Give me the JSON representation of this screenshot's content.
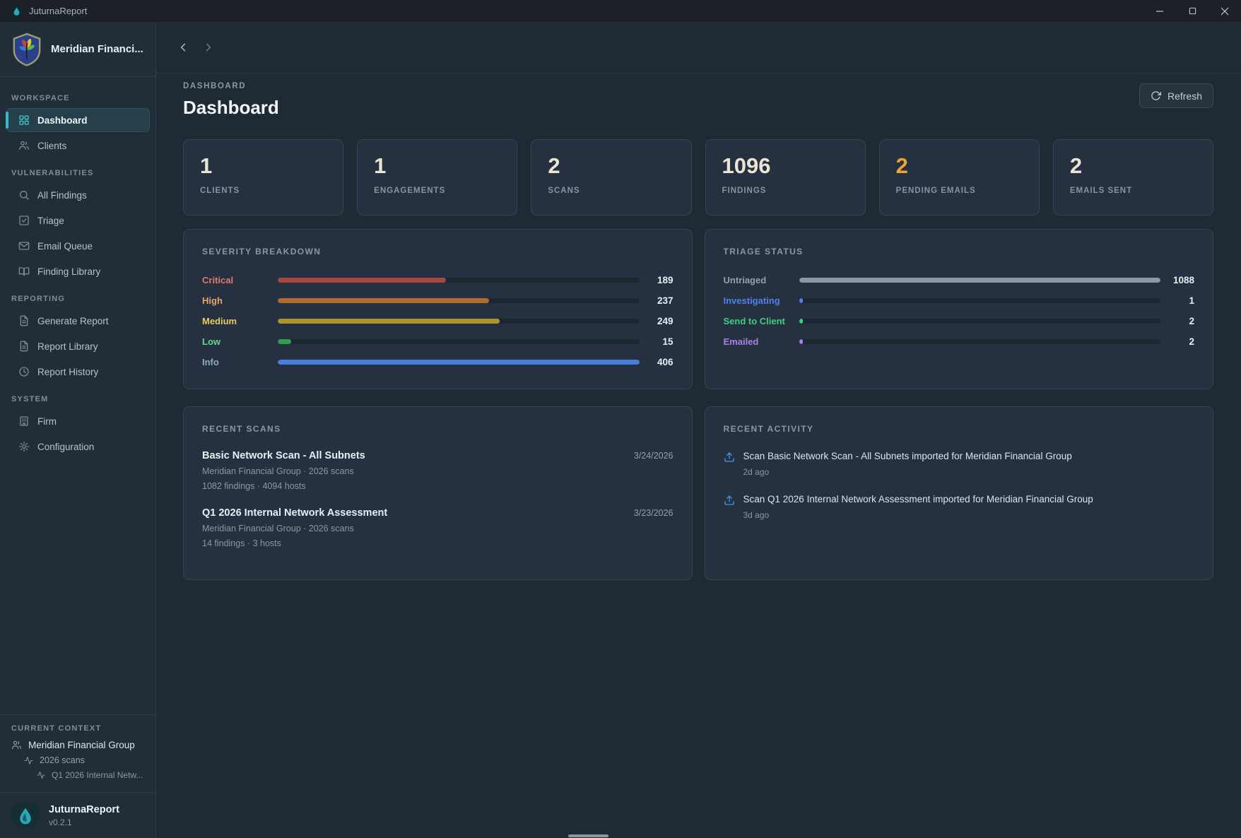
{
  "window": {
    "title": "JuturnaReport"
  },
  "sidebar": {
    "brand": "Meridian Financi...",
    "sections": [
      {
        "label": "WORKSPACE",
        "items": [
          {
            "label": "Dashboard",
            "icon": "grid",
            "active": true
          },
          {
            "label": "Clients",
            "icon": "users",
            "active": false
          }
        ]
      },
      {
        "label": "VULNERABILITIES",
        "items": [
          {
            "label": "All Findings",
            "icon": "search",
            "active": false
          },
          {
            "label": "Triage",
            "icon": "check-square",
            "active": false
          },
          {
            "label": "Email Queue",
            "icon": "mail",
            "active": false
          },
          {
            "label": "Finding Library",
            "icon": "book",
            "active": false
          }
        ]
      },
      {
        "label": "REPORTING",
        "items": [
          {
            "label": "Generate Report",
            "icon": "file",
            "active": false
          },
          {
            "label": "Report Library",
            "icon": "file",
            "active": false
          },
          {
            "label": "Report History",
            "icon": "clock",
            "active": false
          }
        ]
      },
      {
        "label": "SYSTEM",
        "items": [
          {
            "label": "Firm",
            "icon": "building",
            "active": false
          },
          {
            "label": "Configuration",
            "icon": "gear",
            "active": false
          }
        ]
      }
    ],
    "context": {
      "label": "CURRENT CONTEXT",
      "client": "Meridian Financial Group",
      "engagement": "2026 scans",
      "scan": "Q1 2026 Internal Netw..."
    },
    "footer": {
      "app": "JuturnaReport",
      "version": "v0.2.1"
    }
  },
  "header": {
    "breadcrumb": "DASHBOARD",
    "title": "Dashboard",
    "refresh_label": "Refresh"
  },
  "stats": [
    {
      "value": "1",
      "label": "CLIENTS",
      "color": "#ece4d3"
    },
    {
      "value": "1",
      "label": "ENGAGEMENTS",
      "color": "#ece4d3"
    },
    {
      "value": "2",
      "label": "SCANS",
      "color": "#ece4d3"
    },
    {
      "value": "1096",
      "label": "FINDINGS",
      "color": "#ece4d3"
    },
    {
      "value": "2",
      "label": "PENDING EMAILS",
      "color": "#f0a233"
    },
    {
      "value": "2",
      "label": "EMAILS SENT",
      "color": "#ece4d3"
    }
  ],
  "chart_data": [
    {
      "type": "bar",
      "title": "SEVERITY BREAKDOWN",
      "categories": [
        "Critical",
        "High",
        "Medium",
        "Low",
        "Info"
      ],
      "values": [
        189,
        237,
        249,
        15,
        406
      ],
      "max": 406,
      "label_colors": [
        "#e4786c",
        "#eba368",
        "#e9c95e",
        "#63d88c",
        "#92a9c4"
      ],
      "bar_colors": [
        "#a8473f",
        "#b36b2d",
        "#a9962f",
        "#2f9e50",
        "#4a7cdc"
      ]
    },
    {
      "type": "bar",
      "title": "TRIAGE STATUS",
      "categories": [
        "Untriaged",
        "Investigating",
        "Send to Client",
        "Emailed"
      ],
      "values": [
        1088,
        1,
        2,
        2
      ],
      "max": 1088,
      "label_colors": [
        "#93a0ac",
        "#4f82e8",
        "#3bd080",
        "#a881e8"
      ],
      "bar_colors": [
        "#8b98a6",
        "#4f82e8",
        "#3bd080",
        "#a881e8"
      ]
    }
  ],
  "recent_scans": {
    "title": "RECENT SCANS",
    "items": [
      {
        "name": "Basic Network Scan - All Subnets",
        "date": "3/24/2026",
        "meta1": "Meridian Financial Group · 2026 scans",
        "meta2": "1082 findings · 4094 hosts"
      },
      {
        "name": "Q1 2026 Internal Network Assessment",
        "date": "3/23/2026",
        "meta1": "Meridian Financial Group · 2026 scans",
        "meta2": "14 findings · 3 hosts"
      }
    ]
  },
  "recent_activity": {
    "title": "RECENT ACTIVITY",
    "items": [
      {
        "text": "Scan Basic Network Scan - All Subnets imported for Meridian Financial Group",
        "time": "2d ago"
      },
      {
        "text": "Scan Q1 2026 Internal Network Assessment imported for Meridian Financial Group",
        "time": "3d ago"
      }
    ]
  },
  "colors": {
    "accent_teal": "#35b9c8",
    "pending_orange": "#f0a233",
    "activity_icon_blue": "#4b93d8"
  }
}
